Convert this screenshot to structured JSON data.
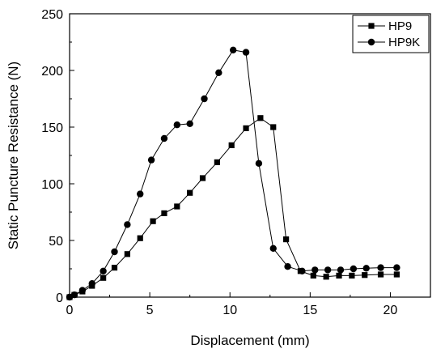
{
  "chart_data": {
    "type": "line",
    "title": "",
    "xlabel": "Displacement (mm)",
    "ylabel": "Static Puncture Resistance (N)",
    "xlim": [
      0,
      22.5
    ],
    "ylim": [
      0,
      250
    ],
    "xticks": [
      0,
      5,
      10,
      15,
      20
    ],
    "yticks": [
      0,
      50,
      100,
      150,
      200,
      250
    ],
    "grid": false,
    "legend_position": "top-right",
    "series": [
      {
        "name": "HP9",
        "marker": "square",
        "color": "#000000",
        "x": [
          0,
          0.3,
          0.8,
          1.4,
          2.1,
          2.8,
          3.6,
          4.4,
          5.2,
          5.9,
          6.7,
          7.5,
          8.3,
          9.2,
          10.1,
          11,
          11.9,
          12.7,
          13.5,
          14.4,
          15.2,
          16,
          16.8,
          17.6,
          18.4,
          19.4,
          20.4
        ],
        "y": [
          0,
          2,
          5,
          10,
          17,
          26,
          38,
          52,
          67,
          74,
          80,
          92,
          105,
          119,
          134,
          149,
          158,
          150,
          51,
          23,
          19,
          18,
          19,
          19,
          19.5,
          20,
          20
        ]
      },
      {
        "name": "HP9K",
        "marker": "circle",
        "color": "#000000",
        "x": [
          0,
          0.3,
          0.8,
          1.4,
          2.1,
          2.8,
          3.6,
          4.4,
          5.1,
          5.9,
          6.7,
          7.5,
          8.4,
          9.3,
          10.2,
          11,
          11.8,
          12.7,
          13.6,
          14.5,
          15.3,
          16.1,
          16.9,
          17.7,
          18.5,
          19.4,
          20.4
        ],
        "y": [
          0,
          2,
          6,
          12,
          23,
          40,
          64,
          91,
          121,
          140,
          152,
          153,
          175,
          198,
          218,
          216,
          118,
          43,
          27,
          23,
          24,
          24,
          24,
          25,
          25.5,
          26,
          26
        ]
      }
    ]
  }
}
